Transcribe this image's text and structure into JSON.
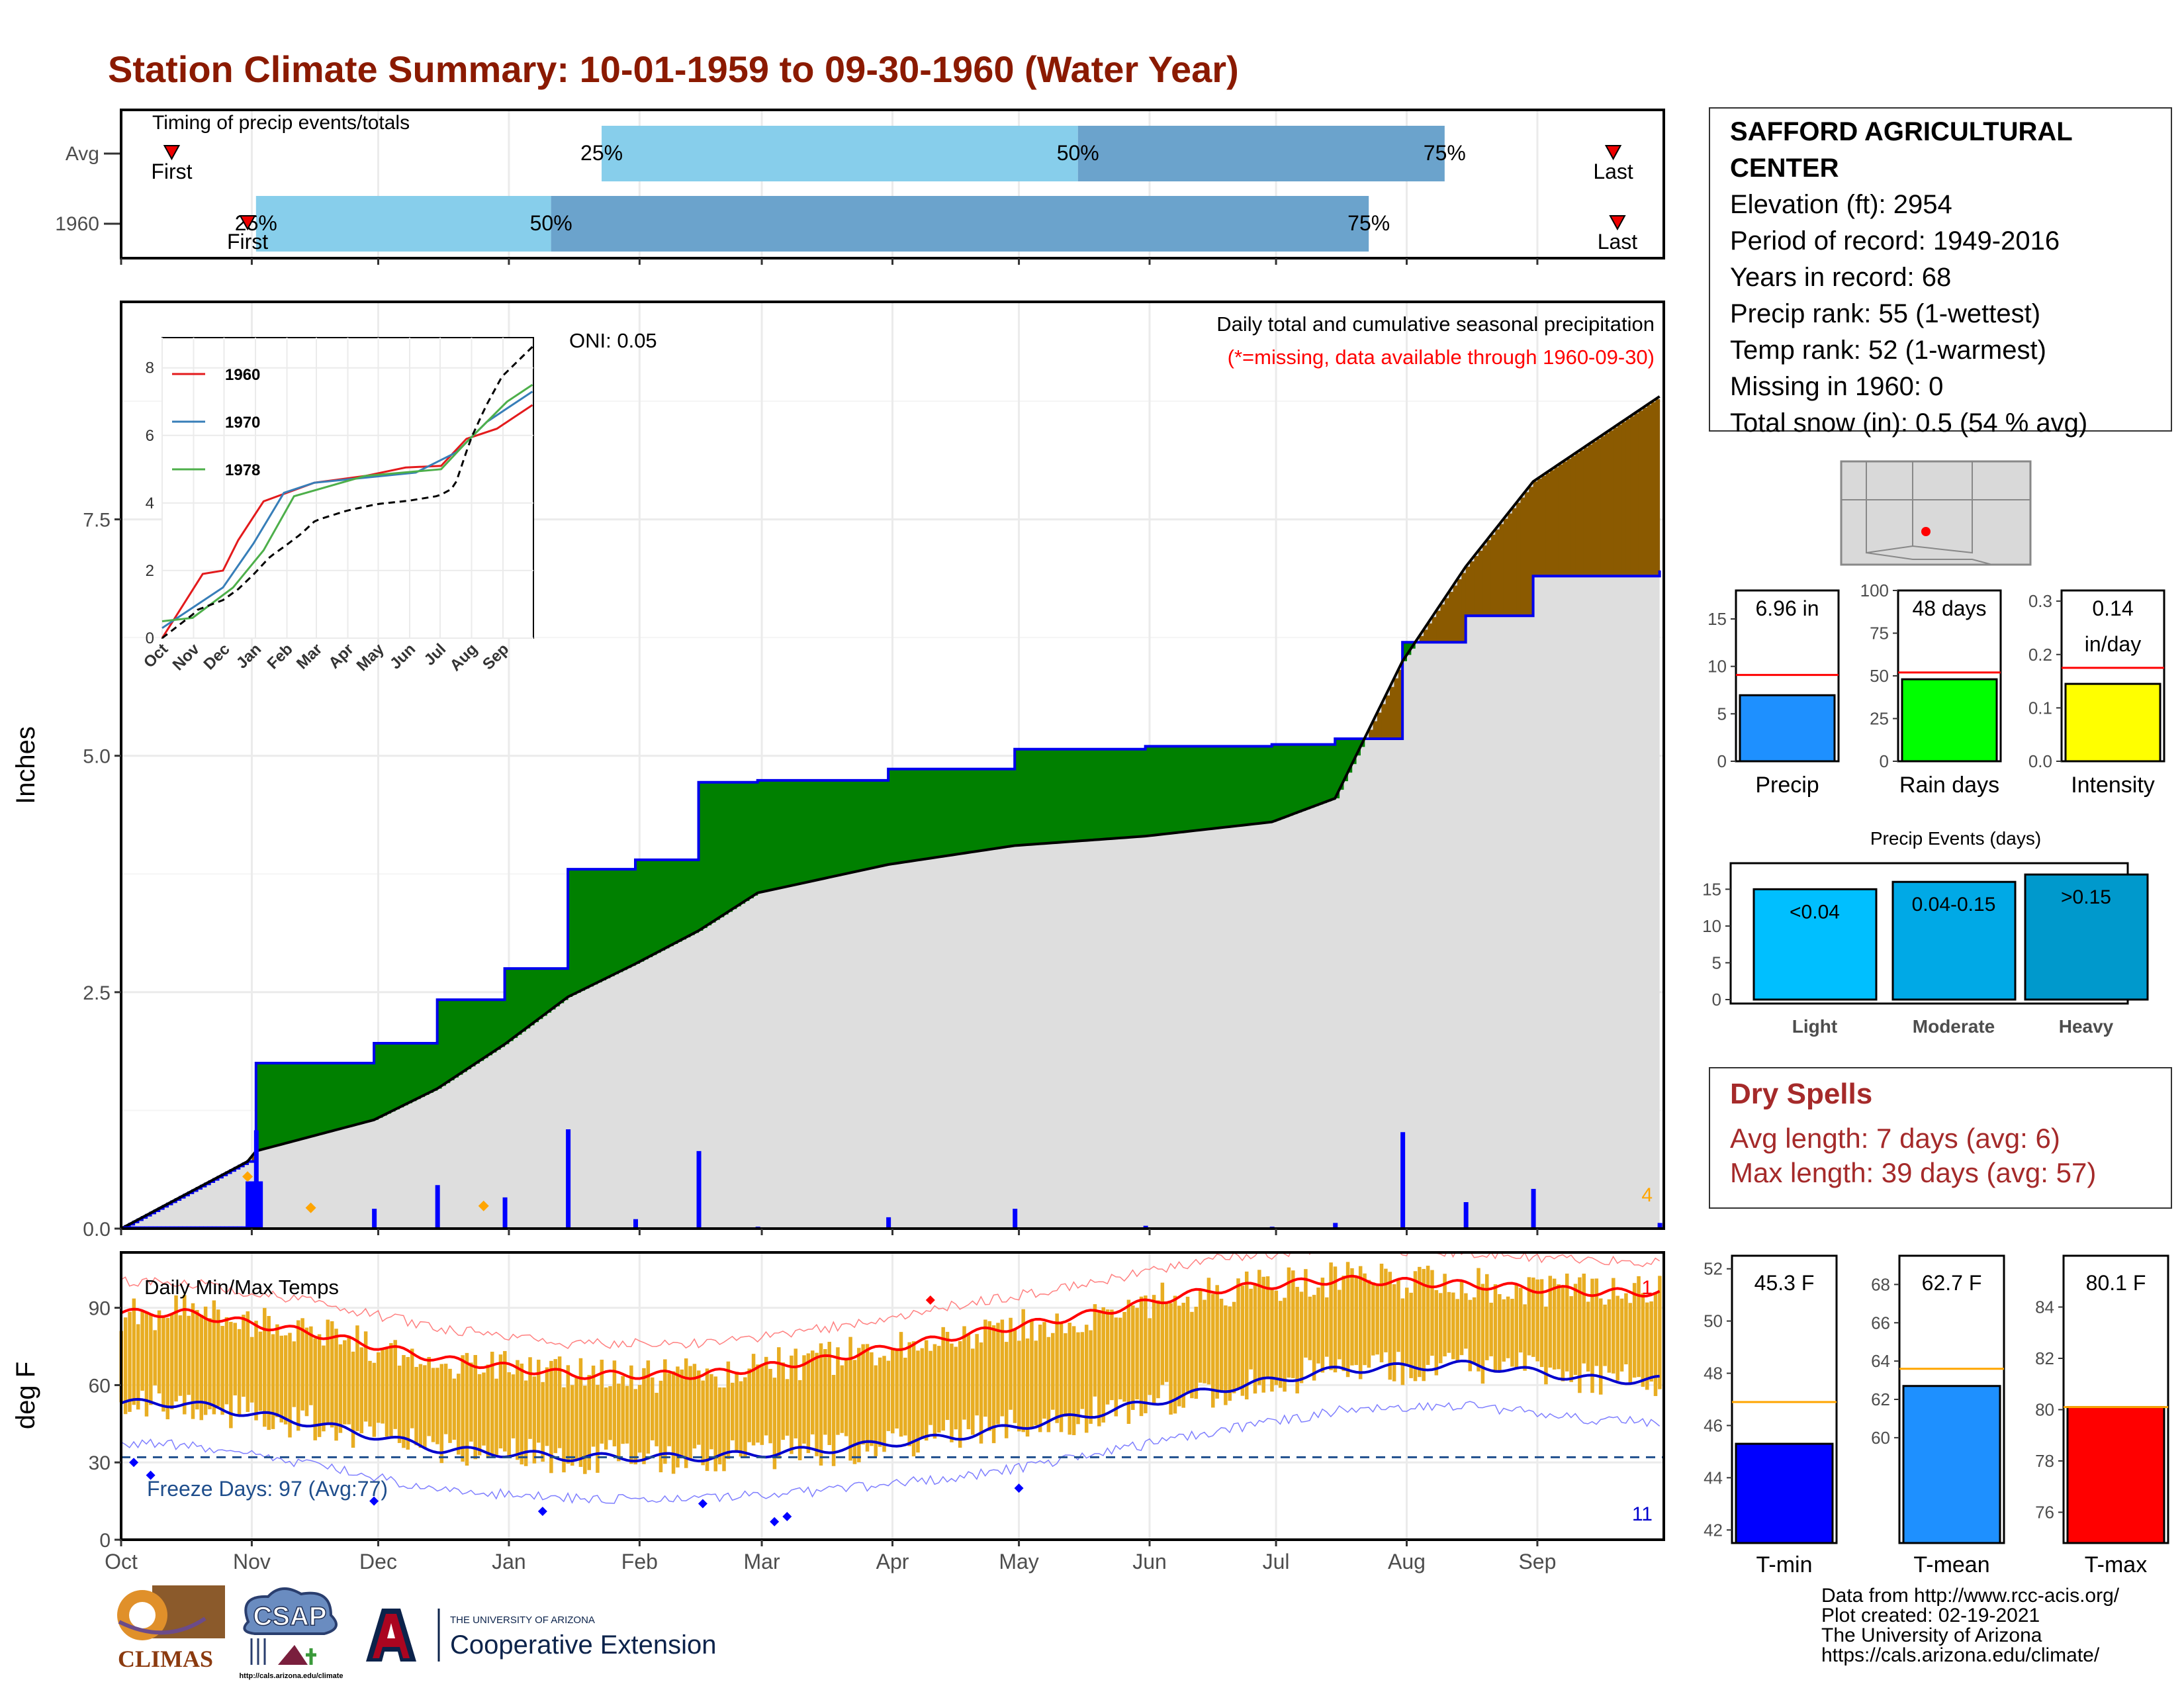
{
  "title": "Station Climate Summary: 10-01-1959 to 09-30-1960 (Water Year)",
  "timing": {
    "label": "Timing of precip events/totals",
    "rows": [
      {
        "name": "Avg",
        "first_label": "First",
        "last_label": "Last",
        "q25": "25%",
        "q50": "50%",
        "q75": "75%",
        "first_day": 12,
        "q25_day": 114,
        "q50_day": 227,
        "q75_day": 314,
        "last_day": 354
      },
      {
        "name": "1960",
        "first_label": "First",
        "last_label": "Last",
        "q25": "25%",
        "q50": "50%",
        "q75": "75%",
        "first_day": 30,
        "q25_day": 32,
        "q50_day": 102,
        "q75_day": 296,
        "last_day": 355
      }
    ]
  },
  "station": {
    "name": "SAFFORD AGRICULTURAL CENTER",
    "elevation": "Elevation (ft): 2954",
    "period": "Period of record: 1949-2016",
    "years": "Years in record: 68",
    "precip_rank": "Precip rank: 55 (1-wettest)",
    "temp_rank": "Temp rank: 52 (1-warmest)",
    "missing": "Missing in 1960: 0",
    "snow": "Total snow (in): 0.5 (54 % avg)"
  },
  "precip_panel": {
    "ylabel": "Inches",
    "annotation": "Daily total and cumulative seasonal precipitation",
    "missing_note": "(*=missing, data available through 1960-09-30)",
    "oni": "ONI: 0.05",
    "count_label": "4",
    "yticks": [
      "0.0",
      "2.5",
      "5.0",
      "7.5"
    ]
  },
  "inset": {
    "yticks": [
      "0",
      "2",
      "4",
      "6",
      "8"
    ],
    "months": [
      "Oct",
      "Nov",
      "Dec",
      "Jan",
      "Feb",
      "Mar",
      "Apr",
      "May",
      "Jun",
      "Jul",
      "Aug",
      "Sep"
    ],
    "legend": [
      "1960",
      "1970",
      "1978"
    ],
    "colors": [
      "#e31a1c",
      "#377eb8",
      "#4daf4a"
    ]
  },
  "temp_panel": {
    "ylabel": "deg F",
    "label": "Daily Min/Max Temps",
    "freeze": "Freeze Days: 97 (Avg:77)",
    "max_count": "1",
    "min_count": "11",
    "yticks": [
      "0",
      "30",
      "60",
      "90"
    ],
    "months": [
      "Oct",
      "Nov",
      "Dec",
      "Jan",
      "Feb",
      "Mar",
      "Apr",
      "May",
      "Jun",
      "Jul",
      "Aug",
      "Sep"
    ]
  },
  "mini_bars": [
    {
      "label": "Precip",
      "value_text": "6.96 in",
      "value": 6.96,
      "avg": 9.1,
      "ylim": [
        0,
        18
      ],
      "ticks": [
        "0",
        "5",
        "10",
        "15"
      ],
      "color": "#1e90ff"
    },
    {
      "label": "Rain days",
      "value_text": "48 days",
      "value": 48,
      "avg": 52,
      "ylim": [
        0,
        100
      ],
      "ticks": [
        "0",
        "25",
        "50",
        "75",
        "100"
      ],
      "color": "#00ff00"
    },
    {
      "label": "Intensity",
      "value_text": "0.14",
      "value_text2": "in/day",
      "value": 0.145,
      "avg": 0.175,
      "ylim": [
        0,
        0.32
      ],
      "ticks": [
        "0.0",
        "0.1",
        "0.2",
        "0.3"
      ],
      "color": "#ffff00"
    }
  ],
  "events": {
    "title": "Precip Events (days)",
    "ticks": [
      "0",
      "5",
      "10",
      "15"
    ],
    "bars": [
      {
        "label": "Light",
        "value_text": "<0.04",
        "value": 15,
        "color": "#00bfff"
      },
      {
        "label": "Moderate",
        "value_text": "0.04-0.15",
        "value": 16,
        "color": "#00a9e6"
      },
      {
        "label": "Heavy",
        "value_text": ">0.15",
        "value": 17,
        "color": "#0099cc"
      }
    ]
  },
  "dry_spells": {
    "title": "Dry Spells",
    "avg": "Avg length: 7 days (avg: 6)",
    "max": "Max length: 39 days (avg: 57)"
  },
  "temp_bars": [
    {
      "label": "T-min",
      "value_text": "45.3 F",
      "value": 45.3,
      "avg": 46.9,
      "ylim": [
        41.5,
        52.5
      ],
      "ticks": [
        "42",
        "44",
        "46",
        "48",
        "50",
        "52"
      ],
      "color": "#0000ff"
    },
    {
      "label": "T-mean",
      "value_text": "62.7 F",
      "value": 62.7,
      "avg": 63.6,
      "ylim": [
        54.5,
        69.5
      ],
      "ticks": [
        "60",
        "62",
        "64",
        "66",
        "68"
      ],
      "color": "#1e90ff"
    },
    {
      "label": "T-max",
      "value_text": "80.1 F",
      "value": 80.1,
      "avg": 80.1,
      "ylim": [
        74.8,
        86
      ],
      "ticks": [
        "76",
        "78",
        "80",
        "82",
        "84"
      ],
      "color": "#ff0000"
    }
  ],
  "credits": [
    "Data from http://www.rcc-acis.org/",
    "Plot created: 02-19-2021",
    "The University of Arizona",
    "https://cals.arizona.edu/climate/"
  ],
  "logos": {
    "climas": "CLIMAS",
    "csap": "CSAP",
    "csap_url": "http://cals.arizona.edu/climate",
    "ua_small": "THE UNIVERSITY OF ARIZONA",
    "ua_big": "Cooperative Extension"
  },
  "chart_data": [
    {
      "type": "area",
      "title": "Daily total and cumulative seasonal precipitation",
      "ylabel": "Inches",
      "ylim": [
        0,
        9.8
      ],
      "x": [
        "1959-10-01",
        "1959-10-31",
        "1959-11-02",
        "1959-11-30",
        "1959-12-15",
        "1959-12-31",
        "1960-01-15",
        "1960-01-31",
        "1960-02-15",
        "1960-02-29",
        "1960-03-31",
        "1960-04-30",
        "1960-05-31",
        "1960-06-30",
        "1960-07-15",
        "1960-07-31",
        "1960-08-15",
        "1960-08-31",
        "1960-09-30"
      ],
      "series": [
        {
          "name": "1960",
          "values": [
            0,
            0.71,
            1.75,
            1.96,
            2.42,
            2.75,
            3.8,
            3.9,
            4.72,
            4.74,
            4.86,
            5.07,
            5.1,
            5.12,
            5.18,
            6.2,
            6.48,
            6.9,
            6.96
          ]
        },
        {
          "values": [
            0,
            0.71,
            0.82,
            1.15,
            1.48,
            1.95,
            2.45,
            2.8,
            3.15,
            3.55,
            3.85,
            4.05,
            4.15,
            4.3,
            4.55,
            6.0,
            7.0,
            7.9,
            8.8
          ]
        }
      ]
    },
    {
      "type": "line",
      "title": "Daily Min/Max Temps",
      "ylabel": "deg F",
      "ylim": [
        0,
        112
      ],
      "x": [
        "Oct",
        "Nov",
        "Dec",
        "Jan",
        "Feb",
        "Mar",
        "Apr",
        "May",
        "Jun",
        "Jul",
        "Aug",
        "Sep"
      ],
      "series": [
        {
          "values": [
            88,
            80,
            70,
            64,
            64,
            70,
            79,
            87,
            97,
            101,
            99,
            96
          ]
        },
        {
          "values": [
            53,
            45,
            35,
            32,
            32,
            35,
            40,
            48,
            58,
            66,
            68,
            62
          ]
        }
      ]
    }
  ]
}
